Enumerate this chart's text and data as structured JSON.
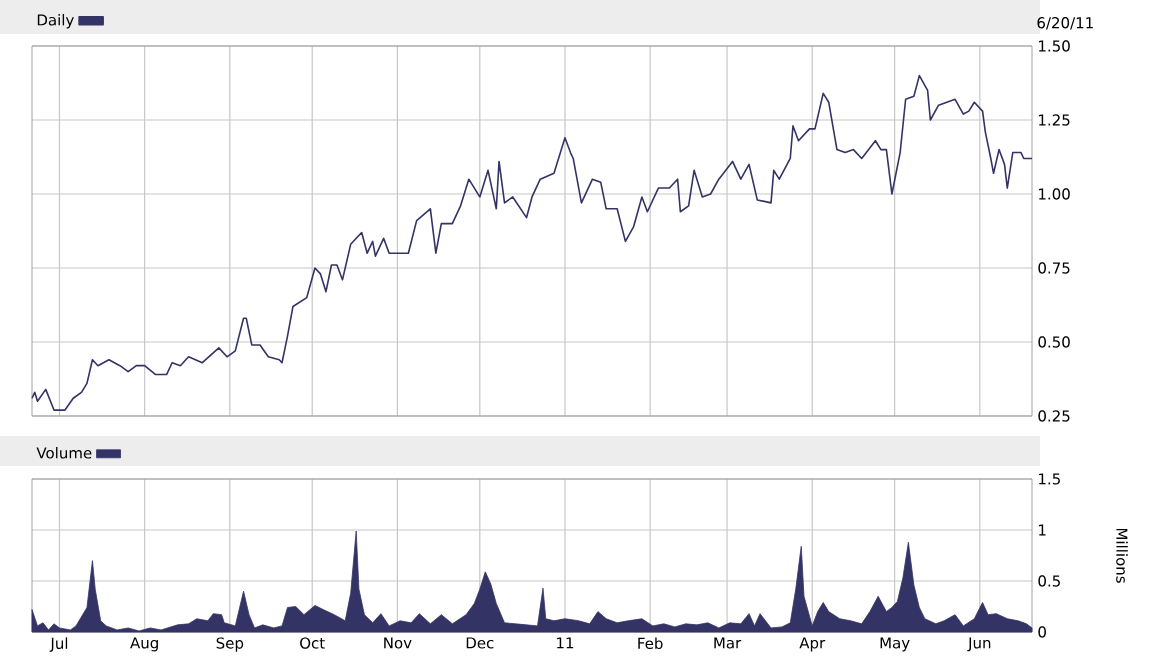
{
  "chart_data": [
    {
      "type": "line",
      "annotations": [
        "6/20/11"
      ],
      "legend": "top left",
      "grid": true,
      "tick_labels": "y",
      "xlim": [
        "2010-06-21",
        "2011-06-20"
      ],
      "xticks": [
        {
          "value": "2010-07-01",
          "label": null
        },
        {
          "value": "2010-08-01",
          "label": null
        },
        {
          "value": "2010-09-01",
          "label": null
        },
        {
          "value": "2010-10-01",
          "label": null
        },
        {
          "value": "2010-11-01",
          "label": null
        },
        {
          "value": "2010-12-01",
          "label": null
        },
        {
          "value": "2011-01-01",
          "label": null
        },
        {
          "value": "2011-02-01",
          "label": null
        },
        {
          "value": "2011-03-01",
          "label": null
        },
        {
          "value": "2011-04-01",
          "label": null
        },
        {
          "value": "2011-05-01",
          "label": null
        },
        {
          "value": "2011-06-01",
          "label": null
        }
      ],
      "ylim": [
        0.25,
        1.5
      ],
      "yticks": [
        {
          "value": 0.25,
          "label": "0.25"
        },
        {
          "value": 0.5,
          "label": "0.50"
        },
        {
          "value": 0.75,
          "label": "0.75"
        },
        {
          "value": 1.0,
          "label": "1.00"
        },
        {
          "value": 1.25,
          "label": "1.25"
        },
        {
          "value": 1.5,
          "label": "1.50"
        }
      ],
      "series": [
        {
          "name": "Daily",
          "color": "#333366",
          "x": [
            "2010-06-21",
            "2010-06-22",
            "2010-06-23",
            "2010-06-26",
            "2010-06-29",
            "2010-07-03",
            "2010-07-06",
            "2010-07-09",
            "2010-07-11",
            "2010-07-13",
            "2010-07-15",
            "2010-07-19",
            "2010-07-23",
            "2010-07-26",
            "2010-07-29",
            "2010-08-01",
            "2010-08-05",
            "2010-08-09",
            "2010-08-11",
            "2010-08-14",
            "2010-08-17",
            "2010-08-22",
            "2010-08-28",
            "2010-08-31",
            "2010-09-03",
            "2010-09-06",
            "2010-09-07",
            "2010-09-09",
            "2010-09-12",
            "2010-09-15",
            "2010-09-19",
            "2010-09-20",
            "2010-09-22",
            "2010-09-24",
            "2010-09-29",
            "2010-10-02",
            "2010-10-04",
            "2010-10-06",
            "2010-10-08",
            "2010-10-10",
            "2010-10-12",
            "2010-10-15",
            "2010-10-19",
            "2010-10-21",
            "2010-10-23",
            "2010-10-24",
            "2010-10-27",
            "2010-10-29",
            "2010-11-05",
            "2010-11-08",
            "2010-11-13",
            "2010-11-15",
            "2010-11-17",
            "2010-11-21",
            "2010-11-24",
            "2010-11-27",
            "2010-12-01",
            "2010-12-04",
            "2010-12-07",
            "2010-12-08",
            "2010-12-10",
            "2010-12-13",
            "2010-12-18",
            "2010-12-20",
            "2010-12-23",
            "2010-12-28",
            "2011-01-01",
            "2011-01-03",
            "2011-01-04",
            "2011-01-07",
            "2011-01-11",
            "2011-01-14",
            "2011-01-16",
            "2011-01-20",
            "2011-01-23",
            "2011-01-26",
            "2011-01-29",
            "2011-01-31",
            "2011-02-04",
            "2011-02-08",
            "2011-02-11",
            "2011-02-12",
            "2011-02-15",
            "2011-02-17",
            "2011-02-20",
            "2011-02-23",
            "2011-02-26",
            "2011-03-03",
            "2011-03-06",
            "2011-03-09",
            "2011-03-12",
            "2011-03-17",
            "2011-03-18",
            "2011-03-20",
            "2011-03-24",
            "2011-03-25",
            "2011-03-27",
            "2011-03-31",
            "2011-04-02",
            "2011-04-05",
            "2011-04-07",
            "2011-04-10",
            "2011-04-13",
            "2011-04-16",
            "2011-04-19",
            "2011-04-24",
            "2011-04-26",
            "2011-04-28",
            "2011-04-30",
            "2011-05-03",
            "2011-05-05",
            "2011-05-08",
            "2011-05-10",
            "2011-05-13",
            "2011-05-14",
            "2011-05-17",
            "2011-05-23",
            "2011-05-26",
            "2011-05-28",
            "2011-05-30",
            "2011-06-02",
            "2011-06-03",
            "2011-06-05",
            "2011-06-06",
            "2011-06-08",
            "2011-06-10",
            "2011-06-11",
            "2011-06-13",
            "2011-06-16",
            "2011-06-17",
            "2011-06-20"
          ],
          "values": [
            0.31,
            0.33,
            0.3,
            0.34,
            0.27,
            0.27,
            0.31,
            0.33,
            0.36,
            0.44,
            0.42,
            0.44,
            0.42,
            0.4,
            0.42,
            0.42,
            0.39,
            0.39,
            0.43,
            0.42,
            0.45,
            0.43,
            0.48,
            0.45,
            0.47,
            0.58,
            0.58,
            0.49,
            0.49,
            0.45,
            0.44,
            0.43,
            0.52,
            0.62,
            0.65,
            0.75,
            0.73,
            0.67,
            0.76,
            0.76,
            0.71,
            0.83,
            0.87,
            0.8,
            0.84,
            0.79,
            0.85,
            0.8,
            0.8,
            0.91,
            0.95,
            0.8,
            0.9,
            0.9,
            0.96,
            1.05,
            0.99,
            1.08,
            0.95,
            1.11,
            0.97,
            0.99,
            0.92,
            0.99,
            1.05,
            1.07,
            1.19,
            1.14,
            1.12,
            0.97,
            1.05,
            1.04,
            0.95,
            0.95,
            0.84,
            0.89,
            0.99,
            0.94,
            1.02,
            1.02,
            1.05,
            0.94,
            0.96,
            1.08,
            0.99,
            1.0,
            1.05,
            1.11,
            1.05,
            1.1,
            0.98,
            0.97,
            1.08,
            1.05,
            1.12,
            1.23,
            1.18,
            1.22,
            1.22,
            1.34,
            1.31,
            1.15,
            1.14,
            1.15,
            1.12,
            1.18,
            1.15,
            1.15,
            1.0,
            1.14,
            1.32,
            1.33,
            1.4,
            1.35,
            1.25,
            1.3,
            1.32,
            1.27,
            1.28,
            1.31,
            1.28,
            1.21,
            1.12,
            1.07,
            1.15,
            1.1,
            1.02,
            1.14,
            1.14,
            1.12,
            1.12
          ]
        }
      ]
    },
    {
      "type": "area",
      "ylabel": "Millions",
      "legend": "top left",
      "grid": true,
      "xlim": [
        "2010-06-21",
        "2011-06-20"
      ],
      "xticks": [
        {
          "value": "2010-07-01",
          "label": "Jul"
        },
        {
          "value": "2010-08-01",
          "label": "Aug"
        },
        {
          "value": "2010-09-01",
          "label": "Sep"
        },
        {
          "value": "2010-10-01",
          "label": "Oct"
        },
        {
          "value": "2010-11-01",
          "label": "Nov"
        },
        {
          "value": "2010-12-01",
          "label": "Dec"
        },
        {
          "value": "2011-01-01",
          "label": "11"
        },
        {
          "value": "2011-02-01",
          "label": "Feb"
        },
        {
          "value": "2011-03-01",
          "label": "Mar"
        },
        {
          "value": "2011-04-01",
          "label": "Apr"
        },
        {
          "value": "2011-05-01",
          "label": "May"
        },
        {
          "value": "2011-06-01",
          "label": "Jun"
        }
      ],
      "ylim": [
        0,
        1.5
      ],
      "yticks": [
        0,
        0.5,
        1,
        1.5
      ],
      "series": [
        {
          "name": "Volume",
          "color": "#333366",
          "x": [
            "2010-06-21",
            "2010-06-23",
            "2010-06-25",
            "2010-06-27",
            "2010-06-29",
            "2010-07-01",
            "2010-07-05",
            "2010-07-07",
            "2010-07-11",
            "2010-07-13",
            "2010-07-14",
            "2010-07-16",
            "2010-07-18",
            "2010-07-22",
            "2010-07-26",
            "2010-07-30",
            "2010-08-03",
            "2010-08-07",
            "2010-08-13",
            "2010-08-17",
            "2010-08-20",
            "2010-08-24",
            "2010-08-26",
            "2010-08-29",
            "2010-08-30",
            "2010-09-03",
            "2010-09-06",
            "2010-09-08",
            "2010-09-10",
            "2010-09-13",
            "2010-09-17",
            "2010-09-20",
            "2010-09-22",
            "2010-09-25",
            "2010-09-28",
            "2010-10-02",
            "2010-10-05",
            "2010-10-09",
            "2010-10-13",
            "2010-10-15",
            "2010-10-17",
            "2010-10-18",
            "2010-10-20",
            "2010-10-23",
            "2010-10-26",
            "2010-10-29",
            "2010-11-02",
            "2010-11-06",
            "2010-11-09",
            "2010-11-13",
            "2010-11-17",
            "2010-11-21",
            "2010-11-26",
            "2010-11-29",
            "2010-12-01",
            "2010-12-03",
            "2010-12-05",
            "2010-12-07",
            "2010-12-10",
            "2010-12-14",
            "2010-12-18",
            "2010-12-22",
            "2010-12-24",
            "2010-12-25",
            "2010-12-28",
            "2011-01-01",
            "2011-01-06",
            "2011-01-10",
            "2011-01-13",
            "2011-01-16",
            "2011-01-20",
            "2011-01-24",
            "2011-01-29",
            "2011-02-02",
            "2011-02-06",
            "2011-02-10",
            "2011-02-14",
            "2011-02-18",
            "2011-02-22",
            "2011-02-26",
            "2011-03-02",
            "2011-03-06",
            "2011-03-09",
            "2011-03-11",
            "2011-03-13",
            "2011-03-17",
            "2011-03-21",
            "2011-03-24",
            "2011-03-26",
            "2011-03-28",
            "2011-03-29",
            "2011-04-01",
            "2011-04-03",
            "2011-04-05",
            "2011-04-07",
            "2011-04-11",
            "2011-04-15",
            "2011-04-19",
            "2011-04-22",
            "2011-04-25",
            "2011-04-28",
            "2011-04-30",
            "2011-05-02",
            "2011-05-04",
            "2011-05-06",
            "2011-05-08",
            "2011-05-10",
            "2011-05-12",
            "2011-05-16",
            "2011-05-19",
            "2011-05-23",
            "2011-05-26",
            "2011-05-30",
            "2011-06-02",
            "2011-06-04",
            "2011-06-07",
            "2011-06-11",
            "2011-06-15",
            "2011-06-18",
            "2011-06-20"
          ],
          "values": [
            0.22,
            0.06,
            0.09,
            0.02,
            0.08,
            0.04,
            0.02,
            0.06,
            0.24,
            0.7,
            0.42,
            0.11,
            0.06,
            0.02,
            0.04,
            0.01,
            0.04,
            0.02,
            0.07,
            0.08,
            0.13,
            0.11,
            0.18,
            0.17,
            0.09,
            0.06,
            0.4,
            0.17,
            0.04,
            0.07,
            0.04,
            0.06,
            0.24,
            0.25,
            0.17,
            0.26,
            0.22,
            0.17,
            0.11,
            0.38,
            0.99,
            0.42,
            0.17,
            0.09,
            0.18,
            0.06,
            0.11,
            0.09,
            0.18,
            0.08,
            0.17,
            0.08,
            0.17,
            0.28,
            0.42,
            0.59,
            0.47,
            0.28,
            0.09,
            0.08,
            0.07,
            0.06,
            0.43,
            0.13,
            0.11,
            0.13,
            0.11,
            0.08,
            0.2,
            0.13,
            0.09,
            0.11,
            0.13,
            0.06,
            0.08,
            0.05,
            0.08,
            0.07,
            0.09,
            0.04,
            0.09,
            0.08,
            0.18,
            0.06,
            0.18,
            0.04,
            0.05,
            0.09,
            0.42,
            0.84,
            0.35,
            0.06,
            0.2,
            0.29,
            0.2,
            0.13,
            0.11,
            0.08,
            0.2,
            0.35,
            0.2,
            0.24,
            0.3,
            0.53,
            0.88,
            0.46,
            0.24,
            0.13,
            0.08,
            0.11,
            0.17,
            0.06,
            0.13,
            0.29,
            0.17,
            0.18,
            0.13,
            0.11,
            0.08,
            0.04
          ]
        }
      ]
    }
  ]
}
